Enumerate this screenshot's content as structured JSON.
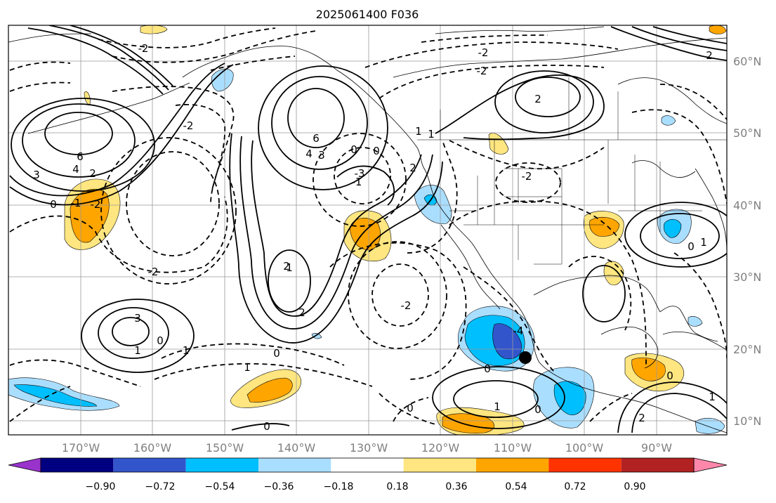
{
  "map": {
    "title": "2025061400 F036",
    "lat_labels": [
      "60°N",
      "50°N",
      "40°N",
      "30°N",
      "20°N",
      "10°N"
    ],
    "lon_labels": [
      "170°W",
      "160°W",
      "150°W",
      "140°W",
      "130°W",
      "120°W",
      "110°W",
      "100°W",
      "90°W"
    ],
    "contour_labels": [
      "6",
      "4",
      "3",
      "2",
      "0",
      "-1",
      "-2",
      "6",
      "4",
      "3",
      "2",
      "1",
      "0",
      "-2",
      "-2",
      "2",
      "1",
      "0",
      "-2",
      "-1",
      "2",
      "3",
      "1",
      "0",
      "-1",
      "0",
      "0",
      "0",
      "2",
      "1",
      "0",
      "-2",
      "-4",
      "-3",
      "1",
      "0",
      "-2",
      "-2",
      "1",
      "0",
      "1",
      "2",
      "-2",
      "0",
      "1",
      "2"
    ],
    "marker": "black-dot"
  },
  "colorbar": {
    "colors": [
      "#9933cc",
      "#000080",
      "#3355cc",
      "#00bfff",
      "#aadeff",
      "#ffffff",
      "#ffe680",
      "#ffa500",
      "#ff3300",
      "#b22222",
      "#ff88aa"
    ],
    "tick_labels": [
      "−0.90",
      "−0.72",
      "−0.54",
      "−0.36",
      "−0.18",
      "0.18",
      "0.36",
      "0.54",
      "0.72",
      "0.90"
    ]
  }
}
